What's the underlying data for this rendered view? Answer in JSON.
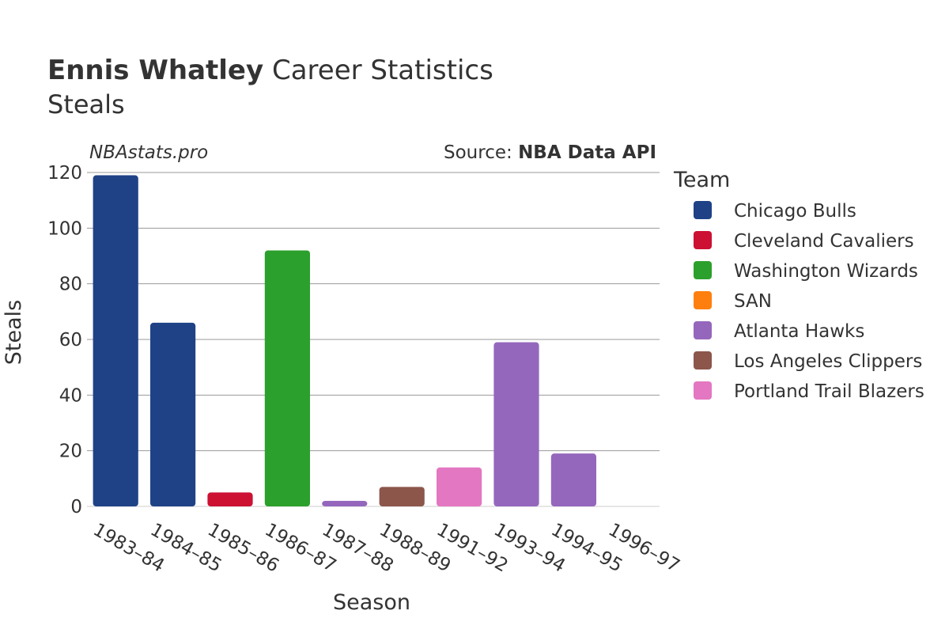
{
  "header": {
    "title_bold": "Ennis Whatley",
    "title_rest": " Career Statistics",
    "subtitle": "Steals"
  },
  "credits": {
    "site": "NBAstats.pro",
    "source_prefix": "Source: ",
    "source_name": "NBA Data API"
  },
  "legend": {
    "title": "Team",
    "items": [
      {
        "label": "Chicago Bulls",
        "color": "#1f4287"
      },
      {
        "label": "Cleveland Cavaliers",
        "color": "#cc1133"
      },
      {
        "label": "Washington Wizards",
        "color": "#2ca02c"
      },
      {
        "label": "SAN",
        "color": "#ff7f0e"
      },
      {
        "label": "Atlanta Hawks",
        "color": "#9467bd"
      },
      {
        "label": "Los Angeles Clippers",
        "color": "#8c564b"
      },
      {
        "label": "Portland Trail Blazers",
        "color": "#e377c2"
      }
    ]
  },
  "chart_data": {
    "type": "bar",
    "title": "Ennis Whatley Career Statistics",
    "subtitle": "Steals",
    "xlabel": "Season",
    "ylabel": "Steals",
    "ylim": [
      0,
      120
    ],
    "yticks": [
      0,
      20,
      40,
      60,
      80,
      100,
      120
    ],
    "grid": true,
    "legend_position": "right",
    "categories": [
      "1983–84",
      "1984–85",
      "1985–86",
      "1986–87",
      "1987–88",
      "1988–89",
      "1991–92",
      "1993–94",
      "1994–95",
      "1996–97"
    ],
    "values": [
      119,
      66,
      5,
      92,
      2,
      7,
      14,
      59,
      19,
      0
    ],
    "teams": [
      "Chicago Bulls",
      "Chicago Bulls",
      "Cleveland Cavaliers",
      "Washington Wizards",
      "Atlanta Hawks",
      "Los Angeles Clippers",
      "Portland Trail Blazers",
      "Atlanta Hawks",
      "Atlanta Hawks",
      "SAN"
    ]
  }
}
